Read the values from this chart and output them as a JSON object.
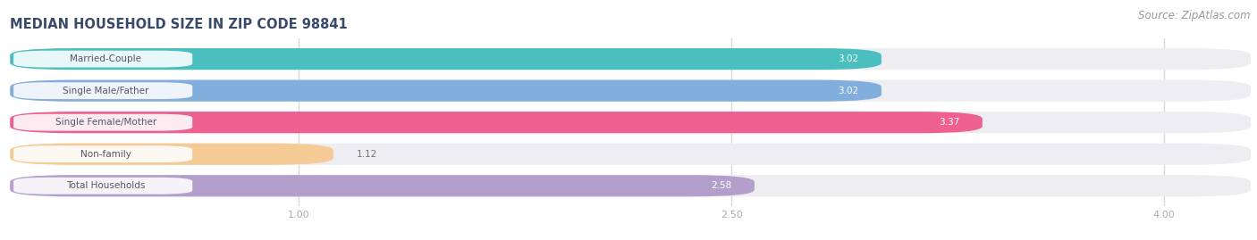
{
  "title": "MEDIAN HOUSEHOLD SIZE IN ZIP CODE 98841",
  "source": "Source: ZipAtlas.com",
  "categories": [
    "Married-Couple",
    "Single Male/Father",
    "Single Female/Mother",
    "Non-family",
    "Total Households"
  ],
  "values": [
    3.02,
    3.02,
    3.37,
    1.12,
    2.58
  ],
  "bar_colors": [
    "#4BBFBF",
    "#82AEDE",
    "#EE6090",
    "#F5CA94",
    "#B39FCC"
  ],
  "xlim_data_min": 0.0,
  "xlim_data_max": 4.3,
  "xaxis_min": 0.0,
  "xticks": [
    1.0,
    2.5,
    4.0
  ],
  "xtick_labels": [
    "1.00",
    "2.50",
    "4.00"
  ],
  "title_fontsize": 10.5,
  "source_fontsize": 8.5,
  "label_fontsize": 7.5,
  "value_fontsize": 7.5,
  "background_color": "#ffffff",
  "bar_background_color": "#ededf2",
  "title_color": "#3a4a6b",
  "source_color": "#999999",
  "grid_color": "#d8d8e0"
}
